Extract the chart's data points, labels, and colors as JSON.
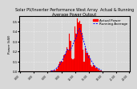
{
  "title": "Solar PV/Inverter Performance West Array  Actual & Running Average Power Output",
  "title_fontsize": 3.5,
  "ylabel": "Power (kW)",
  "ylabel_fontsize": 3.0,
  "xlabel_fontsize": 2.8,
  "background_color": "#d8d8d8",
  "plot_bg_color": "#d8d8d8",
  "bar_color": "#ff0000",
  "bar_edge_color": "#cc0000",
  "avg_line_color": "#0000ff",
  "grid_color": "#ffffff",
  "ylim": [
    0,
    0.55
  ],
  "y_ticks": [
    0.0,
    0.1,
    0.2,
    0.3,
    0.4,
    0.5
  ],
  "n_bars": 96,
  "legend_actual": "Actual Power",
  "legend_avg": "Running Average",
  "legend_fontsize": 3.0
}
